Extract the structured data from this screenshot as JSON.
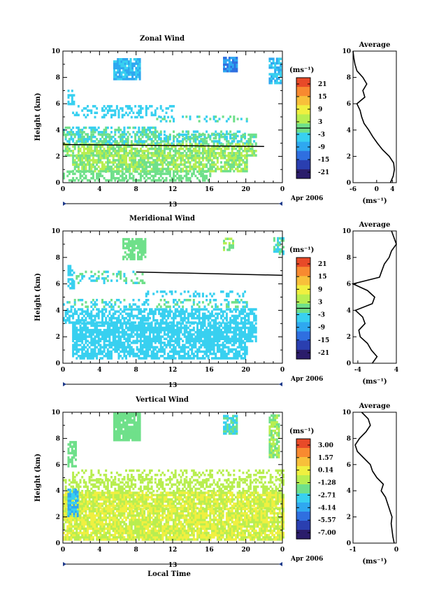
{
  "figure": {
    "xlabel": "Local Time",
    "date_label": "Apr 2006",
    "day_label": "13",
    "ylabel": "Height (km)",
    "unit_label": "(ms⁻¹)",
    "average_title": "Average"
  },
  "colors": {
    "colormap": [
      "#2b1d6b",
      "#2a3fb0",
      "#2f6fe0",
      "#2fa8f0",
      "#38d0f0",
      "#6fe08a",
      "#b8ee50",
      "#f0f040",
      "#f8c03a",
      "#f88a30",
      "#e84a28"
    ]
  },
  "chart_data": [
    {
      "type": "heatmap",
      "title": "Zonal Wind",
      "xlabel": "",
      "ylabel": "Height (km)",
      "xlim": [
        0,
        24
      ],
      "ylim": [
        0,
        10
      ],
      "x_ticks": [
        "0",
        "4",
        "8",
        "12",
        "16",
        "20",
        "0"
      ],
      "y_ticks": [
        "0",
        "2",
        "4",
        "6",
        "8",
        "10"
      ],
      "colorbar": {
        "label": "(ms⁻¹)",
        "ticks": [
          "21",
          "15",
          "9",
          "3",
          "-3",
          "-9",
          "-15",
          "-21"
        ]
      },
      "contour_level_km": 2.8,
      "average_profile": {
        "title": "Average",
        "xlabel": "(ms⁻¹)",
        "xlim": [
          -6,
          5
        ],
        "x_ticks": [
          "-6",
          "0",
          "4"
        ],
        "height_km": [
          0.0,
          0.5,
          1.0,
          1.5,
          2.0,
          2.5,
          3.0,
          3.5,
          4.0,
          4.5,
          5.0,
          5.5,
          6.0,
          6.5,
          7.0,
          7.5,
          8.0,
          8.5,
          9.0,
          9.5,
          10.0
        ],
        "values": [
          3.5,
          4.2,
          4.5,
          4.3,
          3.2,
          1.5,
          0.2,
          -1.0,
          -2.0,
          -3.2,
          -3.8,
          -4.2,
          -5.0,
          -3.0,
          -3.5,
          -2.5,
          -3.5,
          -5.0,
          -5.5,
          -5.8,
          -6.0
        ]
      }
    },
    {
      "type": "heatmap",
      "title": "Meridional Wind",
      "xlabel": "",
      "ylabel": "Height (km)",
      "xlim": [
        0,
        24
      ],
      "ylim": [
        0,
        10
      ],
      "x_ticks": [
        "0",
        "4",
        "8",
        "12",
        "16",
        "20",
        "0"
      ],
      "y_ticks": [
        "0",
        "2",
        "4",
        "6",
        "8",
        "10"
      ],
      "colorbar": {
        "label": "(ms⁻¹)",
        "ticks": [
          "21",
          "15",
          "9",
          "3",
          "-3",
          "-9",
          "-15",
          "-21"
        ]
      },
      "contour_level_km": 6.8,
      "average_profile": {
        "title": "Average",
        "xlabel": "(ms⁻¹)",
        "xlim": [
          -5,
          4
        ],
        "x_ticks": [
          "-4",
          "4"
        ],
        "height_km": [
          0.0,
          0.5,
          1.0,
          1.5,
          2.0,
          2.5,
          3.0,
          3.5,
          4.0,
          4.5,
          5.0,
          5.5,
          6.0,
          6.5,
          7.0,
          7.5,
          8.0,
          8.5,
          9.0,
          9.5,
          10.0
        ],
        "values": [
          -1.0,
          0.0,
          -1.2,
          -2.0,
          -3.5,
          -3.8,
          -2.5,
          -3.0,
          -4.5,
          -1.0,
          -0.5,
          -2.0,
          -5.0,
          0.5,
          1.0,
          1.5,
          2.5,
          3.0,
          4.0,
          3.5,
          3.0
        ]
      }
    },
    {
      "type": "heatmap",
      "title": "Vertical Wind",
      "xlabel": "Local Time",
      "ylabel": "Height (km)",
      "xlim": [
        0,
        24
      ],
      "ylim": [
        0,
        10
      ],
      "x_ticks": [
        "0",
        "4",
        "8",
        "12",
        "16",
        "20",
        "0"
      ],
      "y_ticks": [
        "0",
        "2",
        "4",
        "6",
        "8",
        "10"
      ],
      "colorbar": {
        "label": "(ms⁻¹)",
        "ticks": [
          "3.00",
          "1.57",
          "0.14",
          "-1.28",
          "-2.71",
          "-4.14",
          "-5.57",
          "-7.00"
        ]
      },
      "average_profile": {
        "title": "Average",
        "xlabel": "(ms⁻¹)",
        "xlim": [
          -1,
          0
        ],
        "x_ticks": [
          "-1",
          "0"
        ],
        "height_km": [
          0.0,
          0.5,
          1.0,
          1.5,
          2.0,
          2.5,
          3.0,
          3.5,
          4.0,
          4.5,
          5.0,
          5.5,
          6.0,
          6.5,
          7.0,
          7.5,
          8.0,
          8.5,
          9.0,
          9.5,
          10.0
        ],
        "values": [
          -0.05,
          -0.08,
          -0.1,
          -0.12,
          -0.1,
          -0.15,
          -0.2,
          -0.25,
          -0.35,
          -0.3,
          -0.45,
          -0.55,
          -0.6,
          -0.75,
          -0.9,
          -0.95,
          -0.85,
          -0.7,
          -0.6,
          -0.65,
          -0.8
        ]
      }
    }
  ]
}
